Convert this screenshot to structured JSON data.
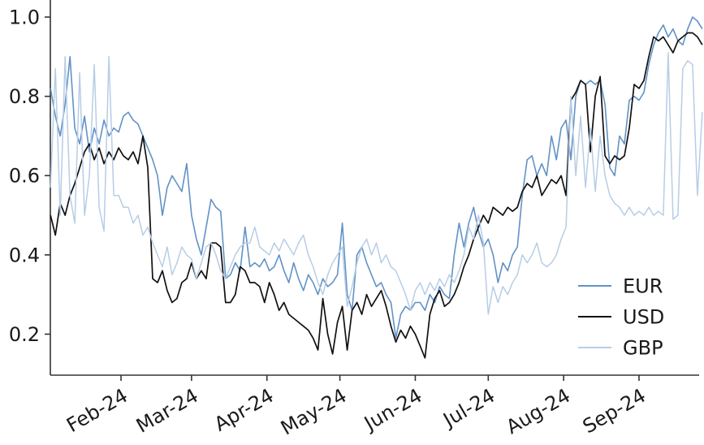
{
  "figure": {
    "background": "#ffffff",
    "axis_color": "#333333",
    "text_color": "#1a1a1a"
  },
  "chart_data": {
    "type": "line",
    "title": "",
    "xlabel": "",
    "ylabel": "",
    "grid": false,
    "x_unit": "days since 2024-01-01",
    "x_start_day": 2,
    "x_step_days": 2,
    "xlim_days": [
      0,
      270
    ],
    "ylim": [
      0.097,
      1.043
    ],
    "y_ticks": [
      0.2,
      0.4,
      0.6,
      0.8,
      1.0
    ],
    "y_tick_labels": [
      "0.2",
      "0.4",
      "0.6",
      "0.8",
      "1.0"
    ],
    "x_tick_days": [
      31,
      60,
      91,
      121,
      152,
      182,
      213,
      244
    ],
    "x_tick_labels": [
      "Feb-24",
      "Mar-24",
      "Apr-24",
      "May-24",
      "Jun-24",
      "Jul-24",
      "Aug-24",
      "Sep-24"
    ],
    "legend": {
      "position": "lower right",
      "frame": false,
      "items": [
        "EUR",
        "USD",
        "GBP"
      ]
    },
    "series": [
      {
        "name": "EUR",
        "color": "#6192c6",
        "line_width": 1.6,
        "values": [
          0.82,
          0.75,
          0.7,
          0.78,
          0.9,
          0.72,
          0.68,
          0.75,
          0.66,
          0.72,
          0.68,
          0.74,
          0.7,
          0.72,
          0.71,
          0.75,
          0.76,
          0.74,
          0.73,
          0.7,
          0.67,
          0.64,
          0.6,
          0.5,
          0.57,
          0.6,
          0.58,
          0.56,
          0.63,
          0.5,
          0.44,
          0.4,
          0.47,
          0.54,
          0.52,
          0.51,
          0.34,
          0.35,
          0.38,
          0.36,
          0.47,
          0.37,
          0.38,
          0.37,
          0.39,
          0.36,
          0.37,
          0.4,
          0.36,
          0.33,
          0.38,
          0.34,
          0.31,
          0.35,
          0.33,
          0.3,
          0.34,
          0.32,
          0.33,
          0.35,
          0.48,
          0.3,
          0.26,
          0.4,
          0.42,
          0.38,
          0.35,
          0.32,
          0.33,
          0.3,
          0.28,
          0.19,
          0.25,
          0.27,
          0.26,
          0.28,
          0.28,
          0.26,
          0.3,
          0.28,
          0.32,
          0.3,
          0.29,
          0.4,
          0.48,
          0.42,
          0.48,
          0.52,
          0.46,
          0.42,
          0.44,
          0.4,
          0.33,
          0.38,
          0.36,
          0.4,
          0.42,
          0.55,
          0.64,
          0.65,
          0.6,
          0.63,
          0.6,
          0.7,
          0.64,
          0.72,
          0.74,
          0.64,
          0.8,
          0.84,
          0.83,
          0.84,
          0.83,
          0.84,
          0.78,
          0.62,
          0.6,
          0.7,
          0.68,
          0.79,
          0.8,
          0.79,
          0.81,
          0.88,
          0.93,
          0.96,
          0.98,
          0.95,
          0.97,
          0.94,
          0.93,
          0.97,
          1.0,
          0.99,
          0.97
        ]
      },
      {
        "name": "USD",
        "color": "#111111",
        "line_width": 1.7,
        "values": [
          0.5,
          0.45,
          0.53,
          0.5,
          0.55,
          0.58,
          0.62,
          0.66,
          0.68,
          0.64,
          0.67,
          0.63,
          0.66,
          0.64,
          0.67,
          0.65,
          0.64,
          0.66,
          0.63,
          0.7,
          0.62,
          0.34,
          0.33,
          0.36,
          0.31,
          0.28,
          0.29,
          0.33,
          0.34,
          0.38,
          0.34,
          0.36,
          0.34,
          0.43,
          0.43,
          0.42,
          0.28,
          0.28,
          0.3,
          0.37,
          0.36,
          0.33,
          0.33,
          0.32,
          0.28,
          0.33,
          0.3,
          0.26,
          0.28,
          0.25,
          0.24,
          0.23,
          0.22,
          0.21,
          0.19,
          0.16,
          0.29,
          0.2,
          0.15,
          0.23,
          0.27,
          0.16,
          0.26,
          0.28,
          0.25,
          0.3,
          0.27,
          0.29,
          0.31,
          0.27,
          0.22,
          0.18,
          0.21,
          0.19,
          0.22,
          0.2,
          0.17,
          0.14,
          0.25,
          0.29,
          0.31,
          0.27,
          0.28,
          0.3,
          0.33,
          0.37,
          0.4,
          0.44,
          0.47,
          0.5,
          0.48,
          0.52,
          0.51,
          0.5,
          0.52,
          0.51,
          0.52,
          0.56,
          0.58,
          0.57,
          0.6,
          0.55,
          0.57,
          0.59,
          0.58,
          0.6,
          0.55,
          0.79,
          0.81,
          0.84,
          0.83,
          0.66,
          0.8,
          0.85,
          0.65,
          0.63,
          0.65,
          0.64,
          0.65,
          0.72,
          0.83,
          0.82,
          0.84,
          0.9,
          0.95,
          0.94,
          0.95,
          0.93,
          0.91,
          0.94,
          0.95,
          0.96,
          0.96,
          0.95,
          0.93
        ]
      },
      {
        "name": "GBP",
        "color": "#b7cde6",
        "line_width": 1.5,
        "values": [
          0.57,
          0.87,
          0.5,
          0.9,
          0.55,
          0.48,
          0.86,
          0.5,
          0.6,
          0.88,
          0.52,
          0.46,
          0.9,
          0.55,
          0.55,
          0.52,
          0.52,
          0.48,
          0.5,
          0.45,
          0.47,
          0.43,
          0.4,
          0.37,
          0.42,
          0.35,
          0.38,
          0.42,
          0.4,
          0.39,
          0.34,
          0.38,
          0.42,
          0.43,
          0.4,
          0.36,
          0.34,
          0.37,
          0.4,
          0.42,
          0.43,
          0.43,
          0.47,
          0.42,
          0.41,
          0.4,
          0.43,
          0.41,
          0.44,
          0.42,
          0.4,
          0.43,
          0.45,
          0.4,
          0.37,
          0.33,
          0.3,
          0.35,
          0.38,
          0.4,
          0.42,
          0.27,
          0.32,
          0.38,
          0.42,
          0.44,
          0.4,
          0.43,
          0.38,
          0.4,
          0.37,
          0.36,
          0.33,
          0.3,
          0.26,
          0.31,
          0.33,
          0.3,
          0.33,
          0.31,
          0.34,
          0.32,
          0.35,
          0.33,
          0.36,
          0.4,
          0.47,
          0.44,
          0.5,
          0.43,
          0.25,
          0.32,
          0.28,
          0.32,
          0.3,
          0.33,
          0.35,
          0.4,
          0.38,
          0.4,
          0.43,
          0.38,
          0.37,
          0.38,
          0.4,
          0.44,
          0.47,
          0.8,
          0.6,
          0.75,
          0.57,
          0.72,
          0.56,
          0.7,
          0.6,
          0.55,
          0.53,
          0.52,
          0.5,
          0.52,
          0.5,
          0.51,
          0.5,
          0.52,
          0.5,
          0.51,
          0.5,
          0.91,
          0.49,
          0.5,
          0.87,
          0.89,
          0.88,
          0.55,
          0.76
        ]
      }
    ]
  }
}
